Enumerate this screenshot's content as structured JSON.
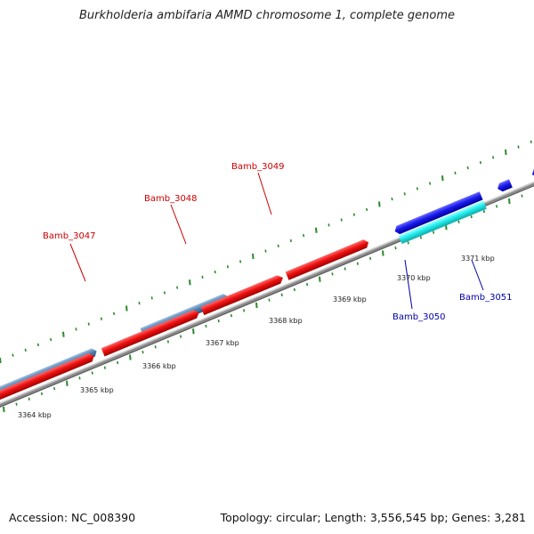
{
  "title": "Burkholderia ambifaria AMMD chromosome 1, complete genome",
  "footer": {
    "accession": "Accession: NC_008390",
    "summary": "Topology: circular; Length: 3,556,545 bp; Genes: 3,281"
  },
  "scale_labels": [
    "3364 kbp",
    "3365 kbp",
    "3366 kbp",
    "3367 kbp",
    "3368 kbp",
    "3369 kbp",
    "3370 kbp",
    "3371 kbp"
  ],
  "gene_labels": [
    {
      "text": "Bamb_3047",
      "color": "#cc0000"
    },
    {
      "text": "Bamb_3048",
      "color": "#cc0000"
    },
    {
      "text": "Bamb_3049",
      "color": "#cc0000"
    },
    {
      "text": "Bamb_3050",
      "color": "#0000aa"
    },
    {
      "text": "Bamb_3051",
      "color": "#0000aa"
    }
  ],
  "colors": {
    "forward_gene": "#ee1111",
    "reverse_gene": "#1a1aee",
    "cyan_gene": "#22eeee",
    "steelblue_gene": "#4f7fb0",
    "backbone": "#888888",
    "tick": "#2a8a2a"
  }
}
